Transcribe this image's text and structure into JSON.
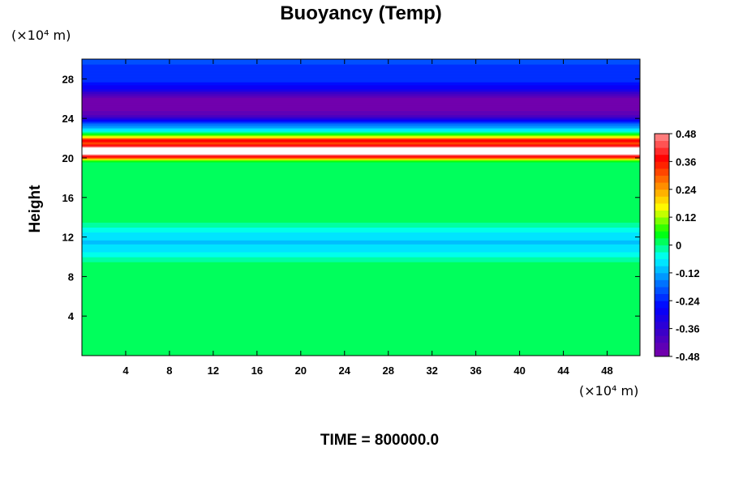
{
  "chart_data": {
    "type": "heatmap",
    "title": "Buoyancy (Temp)",
    "xlabel": "",
    "ylabel": "Height",
    "x_unit": "(×10⁴ m)",
    "y_unit": "(×10⁴ m)",
    "xlim": [
      0,
      51
    ],
    "ylim": [
      0,
      30
    ],
    "x_ticks": [
      4,
      8,
      12,
      16,
      20,
      24,
      28,
      32,
      36,
      40,
      44,
      48
    ],
    "y_ticks": [
      4,
      8,
      12,
      16,
      20,
      24,
      28
    ],
    "colorbar": {
      "range": [
        -0.48,
        0.48
      ],
      "levels": 32,
      "tick_values": [
        0.48,
        0.36,
        0.24,
        0.12,
        0,
        -0.12,
        -0.24,
        -0.36,
        -0.48
      ],
      "tick_labels": [
        "0.48",
        "0.36",
        "0.24",
        "0.12",
        "0",
        "-0.12",
        "-0.24",
        "-0.36",
        "-0.48"
      ],
      "colormap": [
        "#7a00a8",
        "#3a00c8",
        "#0000ff",
        "#0078ff",
        "#00ffff",
        "#00ff00",
        "#ffff00",
        "#ff8000",
        "#ff0000",
        "#ff9090"
      ]
    },
    "profile": {
      "description_free_values": true,
      "height": [
        0,
        9.5,
        10.5,
        11.5,
        12.5,
        13.5,
        19.5,
        19.8,
        20.1,
        20.5,
        21.0,
        21.5,
        21.8,
        22.1,
        22.4,
        22.8,
        23.2,
        23.6,
        24.0,
        24.4,
        25.0,
        26.0,
        26.5,
        27.0,
        27.5,
        28.0,
        29.0,
        30.0
      ],
      "value": [
        0,
        0,
        -0.06,
        -0.1,
        -0.06,
        0,
        0,
        0.1,
        0.36,
        0.52,
        0.52,
        0.3,
        0.4,
        0.2,
        0.06,
        -0.06,
        -0.14,
        -0.2,
        -0.34,
        -0.43,
        -0.46,
        -0.46,
        -0.4,
        -0.3,
        -0.26,
        -0.22,
        -0.22,
        -0.2
      ]
    },
    "grid": false,
    "legend": "right"
  },
  "footer": {
    "time_label": "TIME = 800000.0"
  }
}
